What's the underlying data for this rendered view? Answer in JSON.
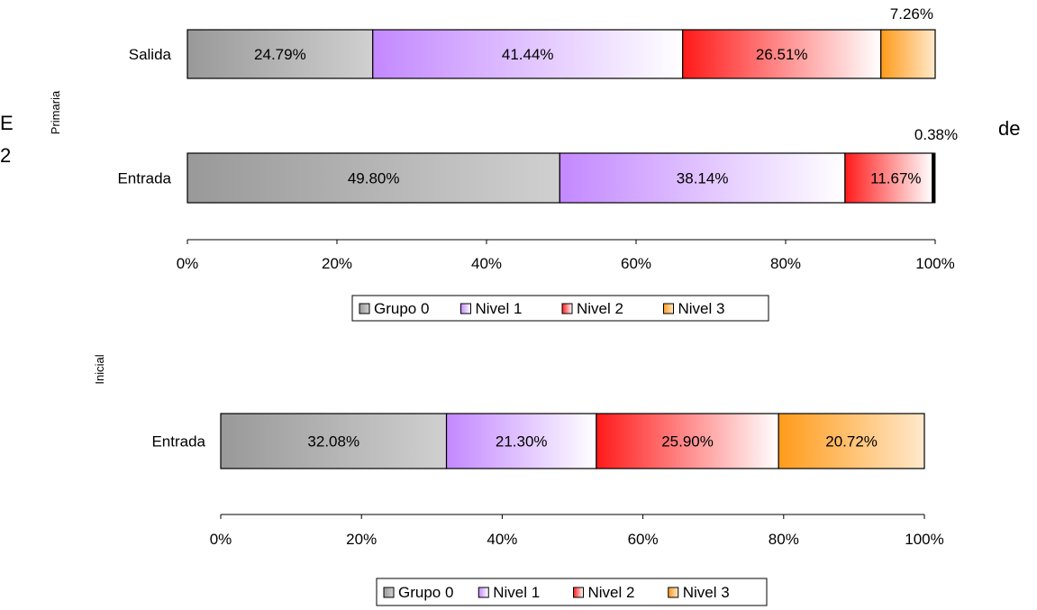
{
  "background_text": {
    "left": "E",
    "left2": "2",
    "right": "de"
  },
  "legend_labels": [
    "Grupo 0",
    "Nivel 1",
    "Nivel 2",
    "Nivel 3"
  ],
  "colors": {
    "grupo0": [
      "#999999",
      "#d0d0d0"
    ],
    "nivel1": [
      "#c388ff",
      "#ffffff"
    ],
    "nivel2": [
      "#ff1a1a",
      "#ffffff"
    ],
    "nivel3": [
      "#ff9b1a",
      "#ffe9cc"
    ]
  },
  "chart_data": [
    {
      "type": "bar",
      "orientation": "horizontal",
      "stacked": true,
      "group_label": "Primaria",
      "categories": [
        "Salida",
        "Entrada"
      ],
      "series": [
        {
          "name": "Grupo 0",
          "values": [
            24.79,
            49.8
          ],
          "labels": [
            "24.79%",
            "49.80%"
          ]
        },
        {
          "name": "Nivel 1",
          "values": [
            41.44,
            38.14
          ],
          "labels": [
            "41.44%",
            "38.14%"
          ]
        },
        {
          "name": "Nivel 2",
          "values": [
            26.51,
            11.67
          ],
          "labels": [
            "26.51%",
            "11.67%"
          ]
        },
        {
          "name": "Nivel 3",
          "values": [
            7.26,
            0.38
          ],
          "labels": [
            "7.26%",
            "0.38%"
          ]
        }
      ],
      "xticks": [
        "0%",
        "20%",
        "40%",
        "60%",
        "80%",
        "100%"
      ],
      "xlim": [
        0,
        100
      ],
      "legend": "bottom"
    },
    {
      "type": "bar",
      "orientation": "horizontal",
      "stacked": true,
      "group_label": "Inicial",
      "categories": [
        "Entrada"
      ],
      "series": [
        {
          "name": "Grupo 0",
          "values": [
            32.08
          ],
          "labels": [
            "32.08%"
          ]
        },
        {
          "name": "Nivel 1",
          "values": [
            21.3
          ],
          "labels": [
            "21.30%"
          ]
        },
        {
          "name": "Nivel 2",
          "values": [
            25.9
          ],
          "labels": [
            "25.90%"
          ]
        },
        {
          "name": "Nivel 3",
          "values": [
            20.72
          ],
          "labels": [
            "20.72%"
          ]
        }
      ],
      "xticks": [
        "0%",
        "20%",
        "40%",
        "60%",
        "80%",
        "100%"
      ],
      "xlim": [
        0,
        100
      ],
      "legend": "bottom"
    }
  ]
}
